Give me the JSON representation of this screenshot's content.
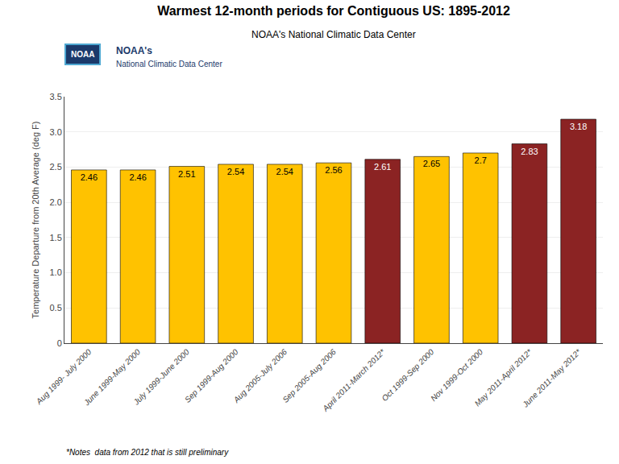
{
  "chart_data": {
    "type": "bar",
    "title": "Warmest 12-month periods for Contiguous US: 1895-2012",
    "subtitle": "NOAA's National Climatic Data Center",
    "y_label": "Temperature Departure from 20th Average (deg F)",
    "annotations": [
      "*Notes  data from 2012 that is still preliminary",
      "NOAA's",
      "National Climatic Data Center",
      "NOAA"
    ],
    "categories": [
      "Aug 1999- July 2000",
      "June 1999-May 2000",
      "July 1999-June 2000",
      "Sep 1999-Aug 2000",
      "Aug 2005-July 2006",
      "Sep 2005-Aug 2006",
      "April 2011-March 2012*",
      "Oct 1999-Sep 2000",
      "Nov 1999-Oct 2000",
      "May 2011-April 2012*",
      "June 2011-May 2012*"
    ],
    "values": [
      2.46,
      2.46,
      2.51,
      2.54,
      2.54,
      2.56,
      2.61,
      2.65,
      2.7,
      2.83,
      3.18
    ],
    "colors": [
      "#FFC200",
      "#FFC200",
      "#FFC200",
      "#FFC200",
      "#FFC200",
      "#FFC200",
      "#8B2323",
      "#FFC200",
      "#FFC200",
      "#8B2323",
      "#8B2323"
    ],
    "ylim": [
      0,
      3.5
    ],
    "yticks": [
      0,
      0.5,
      {
        "value": 1.0,
        "label": "1.0"
      },
      1.5,
      {
        "value": 2.0,
        "label": "2.0"
      },
      2.5,
      {
        "value": 3.0,
        "label": "3.0"
      },
      3.5
    ],
    "grid": true,
    "data_labels": true
  }
}
